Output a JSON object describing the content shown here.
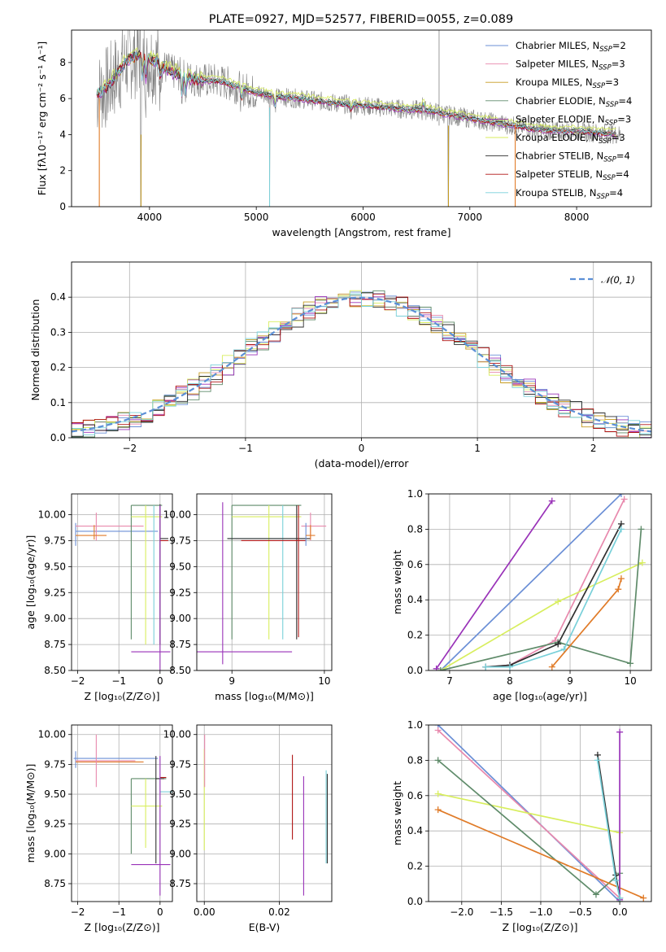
{
  "figure": {
    "title": "PLATE=0927, MJD=52577, FIBERID=0055, z=0.089"
  },
  "colors": {
    "chabrier_miles": "#6b8fd6",
    "salpeter_miles": "#e889ad",
    "kroupa_miles": "#c69b20",
    "chabrier_elodie": "#5f8b6a",
    "salpeter_elodie": "#9932b8",
    "kroupa_elodie": "#d8ee5e",
    "chabrier_stelib": "#2f2f2f",
    "salpeter_stelib": "#b01515",
    "kroupa_stelib": "#79d0d9",
    "orange": "#e07b28",
    "data_gray": "#808080",
    "normal_dashed": "#5b8fd6",
    "grid": "#b0b0b0"
  },
  "chart_data": [
    {
      "id": "spectrum",
      "type": "line",
      "title": "PLATE=0927, MJD=52577, FIBERID=0055, z=0.089",
      "xlabel": "wavelength [Angstrom, rest frame]",
      "ylabel": "Flux [fλ10⁻¹⁷ erg cm⁻² s⁻¹ A⁻¹]",
      "xlim": [
        3270,
        8700
      ],
      "ylim": [
        0,
        9.8
      ],
      "xticks": [
        4000,
        5000,
        6000,
        7000,
        8000
      ],
      "yticks": [
        0,
        2,
        4,
        6,
        8
      ],
      "grid": false,
      "legend_position": "top-right",
      "legend": [
        {
          "label": "Chabrier MILES, N",
          "sub": "SSP",
          "suffix": "=2",
          "color_key": "chabrier_miles"
        },
        {
          "label": "Salpeter MILES, N",
          "sub": "SSP",
          "suffix": "=3",
          "color_key": "salpeter_miles"
        },
        {
          "label": "Kroupa MILES, N",
          "sub": "SSP",
          "suffix": "=3",
          "color_key": "kroupa_miles"
        },
        {
          "label": "Chabrier ELODIE, N",
          "sub": "SSP",
          "suffix": "=4",
          "color_key": "chabrier_elodie"
        },
        {
          "label": "Salpeter ELODIE, N",
          "sub": "SSP",
          "suffix": "=3",
          "color_key": "salpeter_elodie"
        },
        {
          "label": "Kroupa ELODIE, N",
          "sub": "SSP",
          "suffix": "=3",
          "color_key": "kroupa_elodie"
        },
        {
          "label": "Chabrier STELIB, N",
          "sub": "SSP",
          "suffix": "=4",
          "color_key": "chabrier_stelib"
        },
        {
          "label": "Salpeter STELIB, N",
          "sub": "SSP",
          "suffix": "=4",
          "color_key": "salpeter_stelib"
        },
        {
          "label": "Kroupa STELIB, N",
          "sub": "SSP",
          "suffix": "=4",
          "color_key": "kroupa_stelib"
        }
      ],
      "continuum": {
        "x": [
          3500,
          3600,
          3700,
          3800,
          3900,
          4000,
          4100,
          4200,
          4300,
          4400,
          4500,
          4600,
          4700,
          4800,
          4900,
          5000,
          5200,
          5400,
          5600,
          5800,
          6000,
          6200,
          6400,
          6600,
          6800,
          7000,
          7200,
          7400,
          7600,
          7800,
          8000,
          8200,
          8400
        ],
        "y": [
          6.2,
          6.6,
          7.4,
          8.2,
          8.4,
          8.2,
          7.9,
          7.5,
          7.3,
          7.1,
          7.0,
          7.0,
          6.9,
          6.7,
          6.5,
          6.3,
          6.1,
          6.0,
          5.85,
          5.7,
          5.6,
          5.5,
          5.4,
          5.35,
          5.1,
          4.9,
          4.7,
          4.5,
          4.3,
          4.2,
          4.2,
          4.1,
          4.0
        ]
      }
    },
    {
      "id": "residuals",
      "type": "line",
      "xlabel": "(data-model)/error",
      "ylabel": "Normed distribution",
      "xlim": [
        -2.5,
        2.5
      ],
      "ylim": [
        0,
        0.5
      ],
      "xticks": [
        -2,
        -1,
        0,
        1,
        2
      ],
      "yticks": [
        0.0,
        0.1,
        0.2,
        0.3,
        0.4
      ],
      "grid": true,
      "legend_position": "top-right",
      "legend": [
        {
          "label": "𝒩(0, 1)",
          "color_key": "normal_dashed",
          "style": "dashed"
        }
      ]
    },
    {
      "id": "age_vs_Z",
      "type": "scatter",
      "xlabel": "Z [log₁₀(Z/Z⊙)]",
      "ylabel": "age  [log₁₀(age/yr)]",
      "xlim": [
        -2.15,
        0.3
      ],
      "ylim": [
        8.5,
        10.2
      ],
      "xticks": [
        -2,
        -1,
        0
      ],
      "yticks": [
        8.5,
        8.75,
        9.0,
        9.25,
        9.5,
        9.75,
        10.0
      ],
      "grid": true
    },
    {
      "id": "age_vs_mass",
      "type": "scatter",
      "xlabel": "mass [log₁₀(M/M⊙)]",
      "ylabel": "",
      "xlim": [
        8.62,
        10.08
      ],
      "ylim": [
        8.5,
        10.2
      ],
      "xticks": [
        9,
        10
      ],
      "yticks": [
        8.5,
        8.75,
        9.0,
        9.25,
        9.5,
        9.75,
        10.0
      ],
      "grid": true
    },
    {
      "id": "weight_vs_age",
      "type": "line",
      "xlabel": "age  [log₁₀(age/yr)]",
      "ylabel": "mass weight",
      "xlim": [
        6.65,
        10.35
      ],
      "ylim": [
        0,
        1.0
      ],
      "xticks": [
        7,
        8,
        9,
        10
      ],
      "yticks": [
        0.0,
        0.2,
        0.4,
        0.6,
        0.8,
        1.0
      ],
      "grid": true,
      "series": [
        {
          "color_key": "salpeter_elodie",
          "x": [
            6.78,
            8.7
          ],
          "y": [
            0.01,
            0.96
          ]
        },
        {
          "color_key": "chabrier_miles",
          "x": [
            6.85,
            9.85
          ],
          "y": [
            0.0,
            1.0
          ]
        },
        {
          "color_key": "salpeter_miles",
          "x": [
            7.6,
            8.0,
            8.75,
            9.9
          ],
          "y": [
            0.02,
            0.03,
            0.17,
            0.97
          ]
        },
        {
          "color_key": "kroupa_elodie",
          "x": [
            6.85,
            8.8,
            10.2
          ],
          "y": [
            0.0,
            0.39,
            0.61
          ]
        },
        {
          "color_key": "chabrier_elodie",
          "x": [
            6.85,
            8.8,
            10.0,
            10.18
          ],
          "y": [
            0.0,
            0.16,
            0.04,
            0.8
          ]
        },
        {
          "color_key": "chabrier_stelib",
          "x": [
            7.6,
            8.0,
            8.8,
            9.85
          ],
          "y": [
            0.02,
            0.03,
            0.15,
            0.83
          ]
        },
        {
          "color_key": "kroupa_stelib",
          "x": [
            7.6,
            8.0,
            8.9,
            9.85
          ],
          "y": [
            0.02,
            0.02,
            0.12,
            0.8
          ]
        },
        {
          "color_key": "orange",
          "x": [
            8.7,
            9.8,
            9.85
          ],
          "y": [
            0.02,
            0.46,
            0.52
          ]
        }
      ]
    },
    {
      "id": "mass_vs_Z",
      "type": "scatter",
      "xlabel": "Z [log₁₀(Z/Z⊙)]",
      "ylabel": "mass [log₁₀(M/M⊙)]",
      "xlim": [
        -2.15,
        0.3
      ],
      "ylim": [
        8.6,
        10.08
      ],
      "xticks": [
        -2,
        -1,
        0
      ],
      "yticks": [
        8.75,
        9.0,
        9.25,
        9.5,
        9.75,
        10.0
      ],
      "grid": true
    },
    {
      "id": "mass_vs_ebv",
      "type": "scatter",
      "xlabel": "E(B-V)",
      "ylabel": "",
      "xlim": [
        -0.002,
        0.034
      ],
      "ylim": [
        8.6,
        10.08
      ],
      "xticks": [
        0.0,
        0.02
      ],
      "xtick_labels": [
        "0.00",
        "0.02"
      ],
      "yticks": [
        8.75,
        9.0,
        9.25,
        9.5,
        9.75,
        10.0
      ],
      "grid": true
    },
    {
      "id": "weight_vs_Z",
      "type": "line",
      "xlabel": "Z [log₁₀(Z/Z⊙)]",
      "ylabel": "mass weight",
      "xlim": [
        -2.42,
        0.4
      ],
      "ylim": [
        0,
        1.0
      ],
      "xticks": [
        -2.0,
        -1.5,
        -1.0,
        -0.5,
        0.0
      ],
      "xtick_labels": [
        "−2.0",
        "−1.5",
        "−1.0",
        "−0.5",
        "0.0"
      ],
      "yticks": [
        0.0,
        0.2,
        0.4,
        0.6,
        0.8,
        1.0
      ],
      "grid": true,
      "series": [
        {
          "color_key": "chabrier_miles",
          "x": [
            -2.3,
            0.0
          ],
          "y": [
            1.0,
            0.0
          ]
        },
        {
          "color_key": "salpeter_miles",
          "x": [
            -2.3,
            0.0
          ],
          "y": [
            0.97,
            0.02
          ]
        },
        {
          "color_key": "kroupa_elodie",
          "x": [
            -2.3,
            0.0,
            0.0
          ],
          "y": [
            0.61,
            0.39,
            0.0
          ]
        },
        {
          "color_key": "chabrier_elodie",
          "x": [
            -2.3,
            -0.3,
            0.0,
            0.0
          ],
          "y": [
            0.8,
            0.04,
            0.16,
            0.0
          ]
        },
        {
          "color_key": "orange",
          "x": [
            -2.3,
            0.3
          ],
          "y": [
            0.52,
            0.02
          ]
        },
        {
          "color_key": "salpeter_elodie",
          "x": [
            0.0,
            0.0
          ],
          "y": [
            0.96,
            0.01
          ]
        },
        {
          "color_key": "chabrier_stelib",
          "x": [
            -0.28,
            -0.05,
            0.0
          ],
          "y": [
            0.83,
            0.15,
            0.02
          ]
        },
        {
          "color_key": "kroupa_stelib",
          "x": [
            -0.28,
            -0.05,
            0.0
          ],
          "y": [
            0.8,
            0.12,
            0.02
          ]
        }
      ]
    }
  ]
}
